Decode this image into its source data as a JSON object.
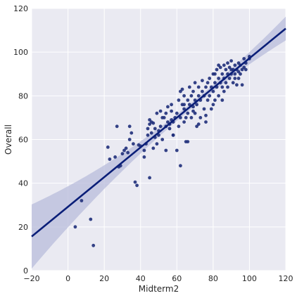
{
  "chart_data": {
    "type": "scatter",
    "xlabel": "Midterm2",
    "ylabel": "Overall",
    "xlim": [
      -20,
      120
    ],
    "ylim": [
      0,
      120
    ],
    "x_ticks": [
      "−20",
      "0",
      "20",
      "40",
      "60",
      "80",
      "100",
      "120"
    ],
    "y_ticks": [
      "0",
      "20",
      "40",
      "60",
      "80",
      "100",
      "120"
    ],
    "grid": true,
    "regression": {
      "slope": 0.68,
      "intercept": 29.2,
      "ci": true
    },
    "colors": {
      "background": "#EAEAF2",
      "grid": "#FFFFFF",
      "points": "#1F2F7A",
      "line": "#0A1E78",
      "band": "#B8BCDB"
    },
    "points": [
      [
        4,
        20
      ],
      [
        7.5,
        32
      ],
      [
        12.5,
        23.5
      ],
      [
        14,
        11.5
      ],
      [
        22,
        56.5
      ],
      [
        23,
        51
      ],
      [
        26,
        52
      ],
      [
        27,
        66
      ],
      [
        28,
        47.5
      ],
      [
        29,
        48
      ],
      [
        30,
        53.5
      ],
      [
        31,
        55
      ],
      [
        32,
        56
      ],
      [
        33,
        54
      ],
      [
        34,
        60
      ],
      [
        34,
        66
      ],
      [
        35,
        63
      ],
      [
        36,
        58
      ],
      [
        37,
        40.5
      ],
      [
        38,
        39
      ],
      [
        39,
        57.5
      ],
      [
        40,
        57
      ],
      [
        42,
        52
      ],
      [
        42,
        55
      ],
      [
        43,
        58
      ],
      [
        44,
        65
      ],
      [
        44,
        62
      ],
      [
        45,
        69
      ],
      [
        45,
        67
      ],
      [
        45,
        42.5
      ],
      [
        46,
        68
      ],
      [
        46,
        63
      ],
      [
        47,
        67.5
      ],
      [
        47,
        56
      ],
      [
        48,
        65
      ],
      [
        48,
        61
      ],
      [
        49,
        72
      ],
      [
        49,
        58
      ],
      [
        50,
        62
      ],
      [
        50,
        64
      ],
      [
        51,
        66
      ],
      [
        51,
        73
      ],
      [
        52,
        60
      ],
      [
        52,
        70
      ],
      [
        53,
        70
      ],
      [
        54,
        55
      ],
      [
        54,
        66
      ],
      [
        54,
        72
      ],
      [
        55,
        68
      ],
      [
        55,
        75
      ],
      [
        56,
        65
      ],
      [
        56,
        67
      ],
      [
        57,
        69
      ],
      [
        57,
        76
      ],
      [
        58,
        62
      ],
      [
        58,
        68
      ],
      [
        59,
        70
      ],
      [
        60,
        72
      ],
      [
        61,
        66
      ],
      [
        61,
        78
      ],
      [
        62,
        48
      ],
      [
        62,
        70
      ],
      [
        63,
        76
      ],
      [
        63,
        83
      ],
      [
        64,
        68
      ],
      [
        64,
        74
      ],
      [
        64,
        80
      ],
      [
        65,
        59
      ],
      [
        65,
        70
      ],
      [
        66,
        72
      ],
      [
        66,
        78
      ],
      [
        67,
        76
      ],
      [
        67,
        84
      ],
      [
        68,
        70
      ],
      [
        68,
        80
      ],
      [
        69,
        75
      ],
      [
        69,
        82
      ],
      [
        70,
        72
      ],
      [
        70,
        78
      ],
      [
        70,
        86
      ],
      [
        71,
        66
      ],
      [
        71,
        76
      ],
      [
        72,
        80
      ],
      [
        72,
        84
      ],
      [
        73,
        70
      ],
      [
        73,
        78
      ],
      [
        74,
        82
      ],
      [
        74,
        87
      ],
      [
        75,
        74
      ],
      [
        75,
        80
      ],
      [
        76,
        68
      ],
      [
        76,
        84
      ],
      [
        77,
        78
      ],
      [
        77,
        86
      ],
      [
        78,
        80
      ],
      [
        78,
        88
      ],
      [
        79,
        74
      ],
      [
        79,
        84
      ],
      [
        80,
        82
      ],
      [
        80,
        90
      ],
      [
        81,
        78
      ],
      [
        81,
        86
      ],
      [
        82,
        84
      ],
      [
        82,
        92
      ],
      [
        83,
        80
      ],
      [
        83,
        88
      ],
      [
        84,
        86
      ],
      [
        84,
        93
      ],
      [
        85,
        78
      ],
      [
        85,
        90
      ],
      [
        86,
        88
      ],
      [
        86,
        94
      ],
      [
        87,
        86
      ],
      [
        87,
        92
      ],
      [
        88,
        84
      ],
      [
        88,
        90
      ],
      [
        88,
        95
      ],
      [
        89,
        88
      ],
      [
        89,
        93
      ],
      [
        90,
        90
      ],
      [
        90,
        96
      ],
      [
        91,
        86
      ],
      [
        91,
        92
      ],
      [
        92,
        90
      ],
      [
        92,
        94
      ],
      [
        93,
        85
      ],
      [
        93,
        92
      ],
      [
        94,
        88
      ],
      [
        94,
        95
      ],
      [
        95,
        90
      ],
      [
        95,
        94
      ],
      [
        96,
        92
      ],
      [
        96,
        85
      ],
      [
        97,
        97
      ],
      [
        97,
        93
      ],
      [
        98,
        95
      ],
      [
        98,
        92
      ],
      [
        100,
        97
      ],
      [
        100,
        98
      ],
      [
        66,
        59
      ],
      [
        60,
        55
      ],
      [
        58,
        62
      ],
      [
        57,
        73
      ],
      [
        62,
        82
      ],
      [
        64,
        76
      ],
      [
        69,
        73
      ],
      [
        72,
        67
      ],
      [
        76,
        71
      ],
      [
        80,
        76
      ],
      [
        81,
        90
      ],
      [
        83,
        94
      ],
      [
        85,
        84
      ],
      [
        86,
        82
      ],
      [
        90,
        92
      ],
      [
        92,
        88
      ],
      [
        94,
        91
      ]
    ]
  }
}
